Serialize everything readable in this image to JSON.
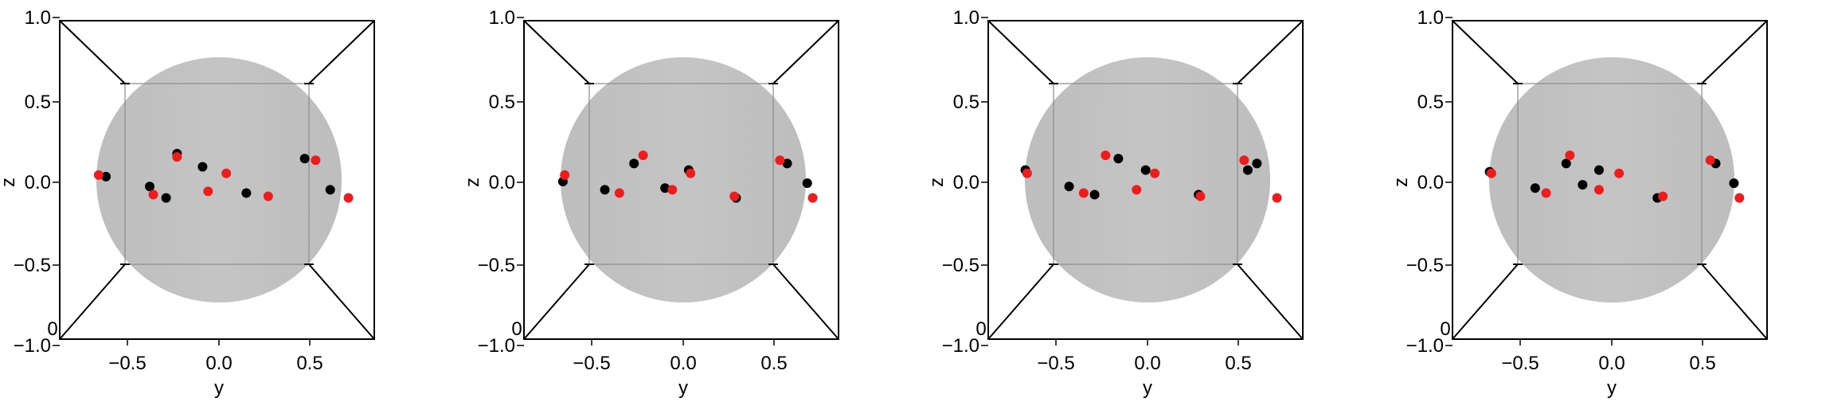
{
  "chart_data": [
    {
      "type": "scatter",
      "xlabel": "y",
      "ylabel": "z",
      "xticks": [
        "−0.5",
        "0.0",
        "0.5"
      ],
      "yticks": [
        "1.0",
        "0.5",
        "0.0",
        "−0.5",
        "−1.0"
      ],
      "corner_label": "0",
      "xlim": [
        -1.0,
        1.0
      ],
      "ylim": [
        -1.0,
        1.0
      ],
      "colors": {
        "black": "#000000",
        "red": "#ee1c1c",
        "sphere": "#bfbfbf"
      },
      "series": [
        {
          "color": "black",
          "x": [
            -0.62,
            -0.38,
            -0.29,
            -0.23,
            -0.09,
            0.15,
            0.47,
            0.61
          ],
          "y": [
            0.02,
            -0.04,
            -0.11,
            0.16,
            0.08,
            -0.08,
            0.13,
            -0.06
          ]
        },
        {
          "color": "red",
          "x": [
            -0.66,
            -0.36,
            -0.23,
            -0.06,
            0.04,
            0.27,
            0.53,
            0.71
          ],
          "y": [
            0.03,
            -0.09,
            0.14,
            -0.07,
            0.04,
            -0.1,
            0.12,
            -0.11
          ]
        }
      ]
    },
    {
      "type": "scatter",
      "xlabel": "y",
      "ylabel": "z",
      "xticks": [
        "−0.5",
        "0.0",
        "0.5"
      ],
      "yticks": [
        "1.0",
        "0.5",
        "0.0",
        "−0.5",
        "−1.0"
      ],
      "corner_label": "0",
      "xlim": [
        -1.0,
        1.0
      ],
      "ylim": [
        -1.0,
        1.0
      ],
      "colors": {
        "black": "#000000",
        "red": "#ee1c1c",
        "sphere": "#bfbfbf"
      },
      "series": [
        {
          "color": "black",
          "x": [
            -0.66,
            -0.43,
            -0.27,
            -0.1,
            0.03,
            0.29,
            0.57,
            0.68
          ],
          "y": [
            -0.01,
            -0.06,
            0.1,
            -0.05,
            0.06,
            -0.11,
            0.1,
            -0.02
          ]
        },
        {
          "color": "red",
          "x": [
            -0.65,
            -0.35,
            -0.22,
            -0.06,
            0.04,
            0.28,
            0.53,
            0.71
          ],
          "y": [
            0.03,
            -0.08,
            0.15,
            -0.06,
            0.04,
            -0.1,
            0.12,
            -0.11
          ]
        }
      ]
    },
    {
      "type": "scatter",
      "xlabel": "y",
      "ylabel": "z",
      "xticks": [
        "−0.5",
        "0.0",
        "0.5"
      ],
      "yticks": [
        "1.0",
        "0.5",
        "0.0",
        "−0.5",
        "−1.0"
      ],
      "corner_label": "0",
      "xlim": [
        -1.0,
        1.0
      ],
      "ylim": [
        -1.0,
        1.0
      ],
      "colors": {
        "black": "#000000",
        "red": "#ee1c1c",
        "sphere": "#bfbfbf"
      },
      "series": [
        {
          "color": "black",
          "x": [
            -0.67,
            -0.43,
            -0.29,
            -0.16,
            -0.01,
            0.28,
            0.55,
            0.6
          ],
          "y": [
            0.06,
            -0.04,
            -0.09,
            0.13,
            0.06,
            -0.09,
            0.06,
            0.1
          ]
        },
        {
          "color": "red",
          "x": [
            -0.66,
            -0.35,
            -0.23,
            -0.06,
            0.04,
            0.29,
            0.53,
            0.71
          ],
          "y": [
            0.04,
            -0.08,
            0.15,
            -0.06,
            0.04,
            -0.1,
            0.12,
            -0.11
          ]
        }
      ]
    },
    {
      "type": "scatter",
      "xlabel": "y",
      "ylabel": "z",
      "xticks": [
        "−0.5",
        "0.0",
        "0.5"
      ],
      "yticks": [
        "1.0",
        "0.5",
        "0.0",
        "−0.5",
        "−1.0"
      ],
      "corner_label": "0",
      "xlim": [
        -1.0,
        1.0
      ],
      "ylim": [
        -1.0,
        1.0
      ],
      "colors": {
        "black": "#000000",
        "red": "#ee1c1c",
        "sphere": "#bfbfbf"
      },
      "series": [
        {
          "color": "black",
          "x": [
            -0.67,
            -0.42,
            -0.25,
            -0.16,
            -0.07,
            0.25,
            0.57,
            0.67
          ],
          "y": [
            0.05,
            -0.05,
            0.1,
            -0.03,
            0.06,
            -0.11,
            0.1,
            -0.02
          ]
        },
        {
          "color": "red",
          "x": [
            -0.66,
            -0.36,
            -0.23,
            -0.07,
            0.04,
            0.28,
            0.54,
            0.7
          ],
          "y": [
            0.04,
            -0.08,
            0.15,
            -0.06,
            0.04,
            -0.1,
            0.12,
            -0.11
          ]
        }
      ]
    }
  ]
}
